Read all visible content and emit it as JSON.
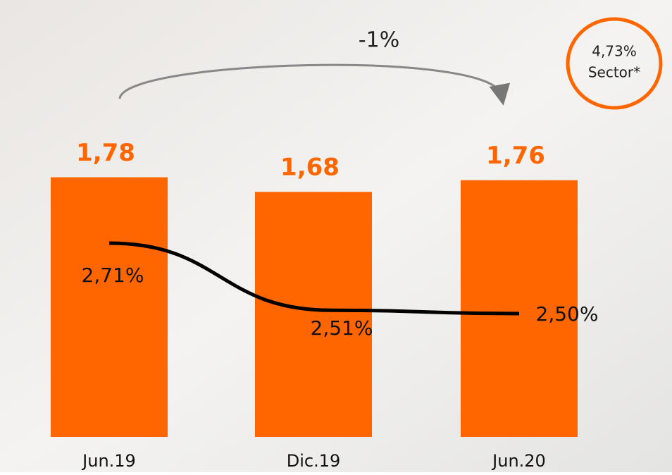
{
  "chart_data": {
    "type": "bar",
    "categories": [
      "Jun.19",
      "Dic.19",
      "Jun.20"
    ],
    "series": [
      {
        "type": "bar",
        "color": "#ff6600",
        "values": [
          1.78,
          1.68,
          1.76
        ],
        "value_labels": [
          "1,78",
          "1,68",
          "1,76"
        ]
      },
      {
        "type": "line",
        "axis": "y2",
        "color": "#000000",
        "values": [
          2.71,
          2.51,
          2.5
        ],
        "value_labels": [
          "2,71%",
          "2,51%",
          "2,50%"
        ]
      }
    ],
    "change_label": "-1%",
    "sector_value": "4,73%",
    "sector_label": "Sector*"
  }
}
